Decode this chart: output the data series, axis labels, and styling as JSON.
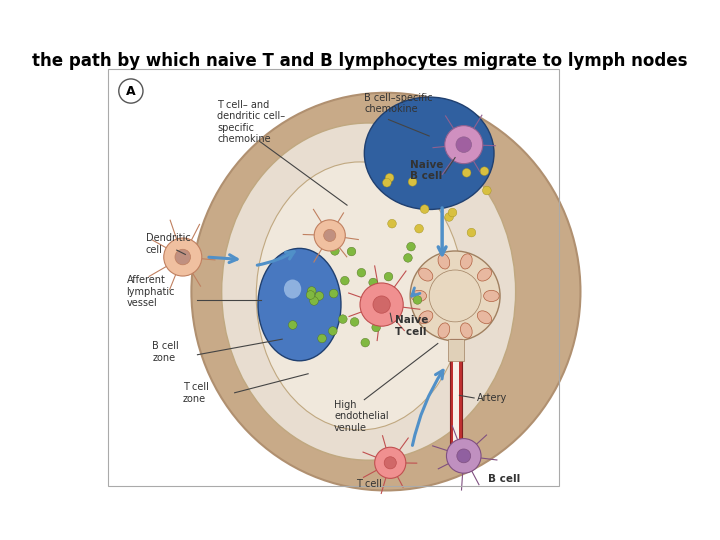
{
  "title": "the path by which naive T and B lymphocytes migrate to lymph nodes",
  "title_fontsize": 12,
  "title_color": "#000000",
  "title_fontweight": "bold",
  "bg_color": "#ffffff",
  "fig_width": 7.2,
  "fig_height": 5.4,
  "dpi": 100,
  "labels": {
    "dendritic_cell": "Dendritic\ncell",
    "afferent_lymphatic": "Afferent\nlymphatic\nvessel",
    "b_cell_zone": "B cell\nzone",
    "t_cell_zone": "T cell\nzone",
    "naive_b_cell": "Naive\nB cell",
    "naive_t_cell": "Naive\nT cell",
    "high_endothelial": "High\nendothelial\nvenule",
    "artery": "Artery",
    "t_cell_bottom": "T cell",
    "b_cell_bottom": "B cell",
    "t_dendritic_chemokine": "T cell– and\ndendritic cell–\nspecific\nchemokine",
    "b_cell_chemokine": "B cell–specific\nchemokine",
    "panel": "A"
  },
  "colors": {
    "outer_node": "#c8aa88",
    "outer_node_edge": "#b09070",
    "inner_cortex": "#e8ddd0",
    "inner_cortex_edge": "#c0a880",
    "t_zone": "#f0e8dc",
    "t_zone_edge": "#c0a880",
    "follicle_bg": "#3060a0",
    "follicle_edge": "#204070",
    "lymph_vessel": "#4878c0",
    "lymph_vessel_edge": "#204070",
    "lymph_highlight": "#a0c0e8",
    "hev_bg": "#e8d8c0",
    "hev_edge": "#a08060",
    "hev_cell": "#e8b8a0",
    "hev_cell_edge": "#b06040",
    "artery_red": "#c03030",
    "artery_white": "#f8f0e8",
    "artery_edge": "#802020",
    "arrow_blue": "#5090c8",
    "dot_green": "#80b840",
    "dot_green_edge": "#507020",
    "dot_yellow": "#d8c040",
    "dot_yellow_edge": "#a09020",
    "dc_cell": "#f0c0a0",
    "dc_cell_edge": "#c08060",
    "dc_nucleus": "#c09080",
    "t_cell_pink": "#f09090",
    "t_cell_edge": "#c05050",
    "b_cell_purple": "#c090c0",
    "b_cell_edge": "#805080",
    "naive_b_purple": "#d090c0",
    "naive_b_edge": "#906090",
    "label_color": "#333333",
    "border_color": "#aaaaaa",
    "panel_circle": "#ffffff",
    "panel_circle_edge": "#555555",
    "line_color": "#444444"
  },
  "fontsizes": {
    "label": 7.0,
    "label_bold": 7.5,
    "panel": 9
  }
}
